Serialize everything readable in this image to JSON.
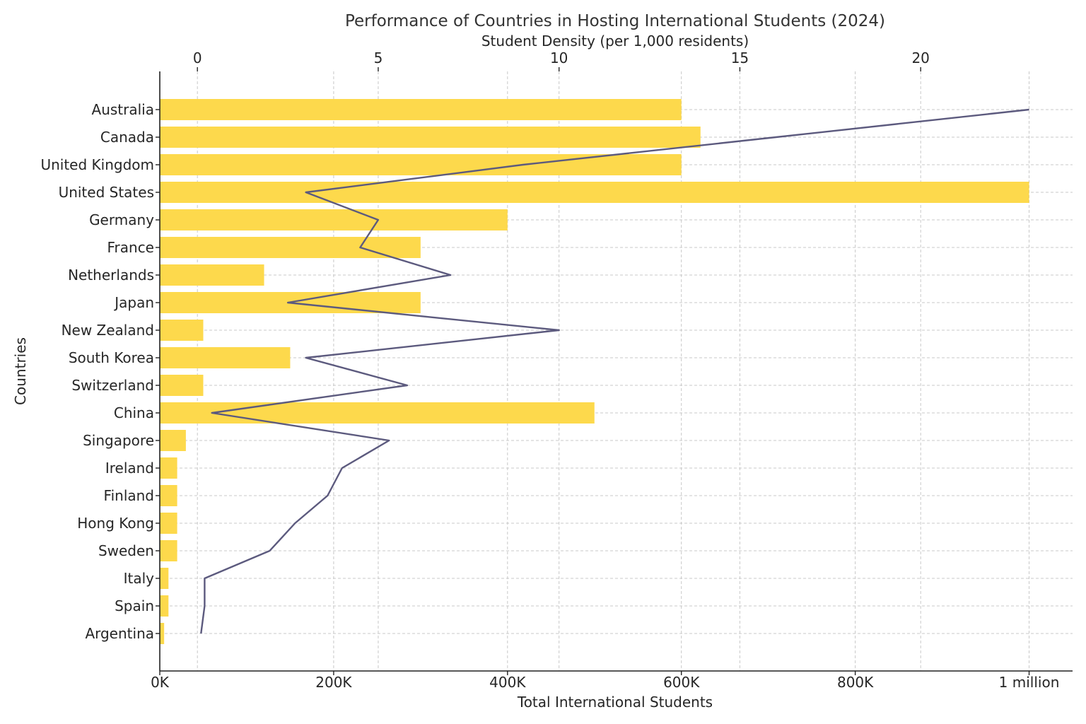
{
  "chart_data": {
    "type": "bar",
    "title": "Performance of Countries in Hosting International Students (2024)",
    "xlabel": "Total International Students",
    "ylabel": "Countries",
    "secondary_xlabel": "Student Density (per 1,000 residents)",
    "xlim": [
      0,
      1050000
    ],
    "xticks": [
      0,
      200000,
      400000,
      600000,
      800000,
      1000000
    ],
    "xtick_labels": [
      "0K",
      "200K",
      "400K",
      "600K",
      "800K",
      "1 million"
    ],
    "secondary_xlim": [
      -1.04,
      24.2
    ],
    "secondary_xticks": [
      0,
      5,
      10,
      15,
      20
    ],
    "secondary_xtick_labels": [
      "0",
      "5",
      "10",
      "15",
      "20"
    ],
    "grid": true,
    "categories": [
      "Australia",
      "Canada",
      "United Kingdom",
      "United States",
      "Germany",
      "France",
      "Netherlands",
      "Japan",
      "New Zealand",
      "South Korea",
      "Switzerland",
      "China",
      "Singapore",
      "Ireland",
      "Finland",
      "Hong Kong",
      "Sweden",
      "Italy",
      "Spain",
      "Argentina"
    ],
    "series": [
      {
        "name": "Total International Students",
        "type": "bar",
        "axis": "bottom",
        "color": "#fdd94c",
        "values": [
          600000,
          622000,
          600000,
          1000000,
          400000,
          300000,
          120000,
          300000,
          50000,
          150000,
          50000,
          500000,
          30000,
          20000,
          20000,
          20000,
          20000,
          10000,
          10000,
          5000
        ]
      },
      {
        "name": "Student Density (per 1,000 residents)",
        "type": "line",
        "axis": "top",
        "color": "#5c5a7e",
        "values": [
          23.0,
          16.0,
          9.0,
          3.0,
          5.0,
          4.5,
          7.0,
          2.5,
          10.0,
          3.0,
          5.8,
          0.4,
          5.3,
          4.0,
          3.6,
          2.7,
          2.0,
          0.2,
          0.2,
          0.1
        ]
      }
    ]
  }
}
